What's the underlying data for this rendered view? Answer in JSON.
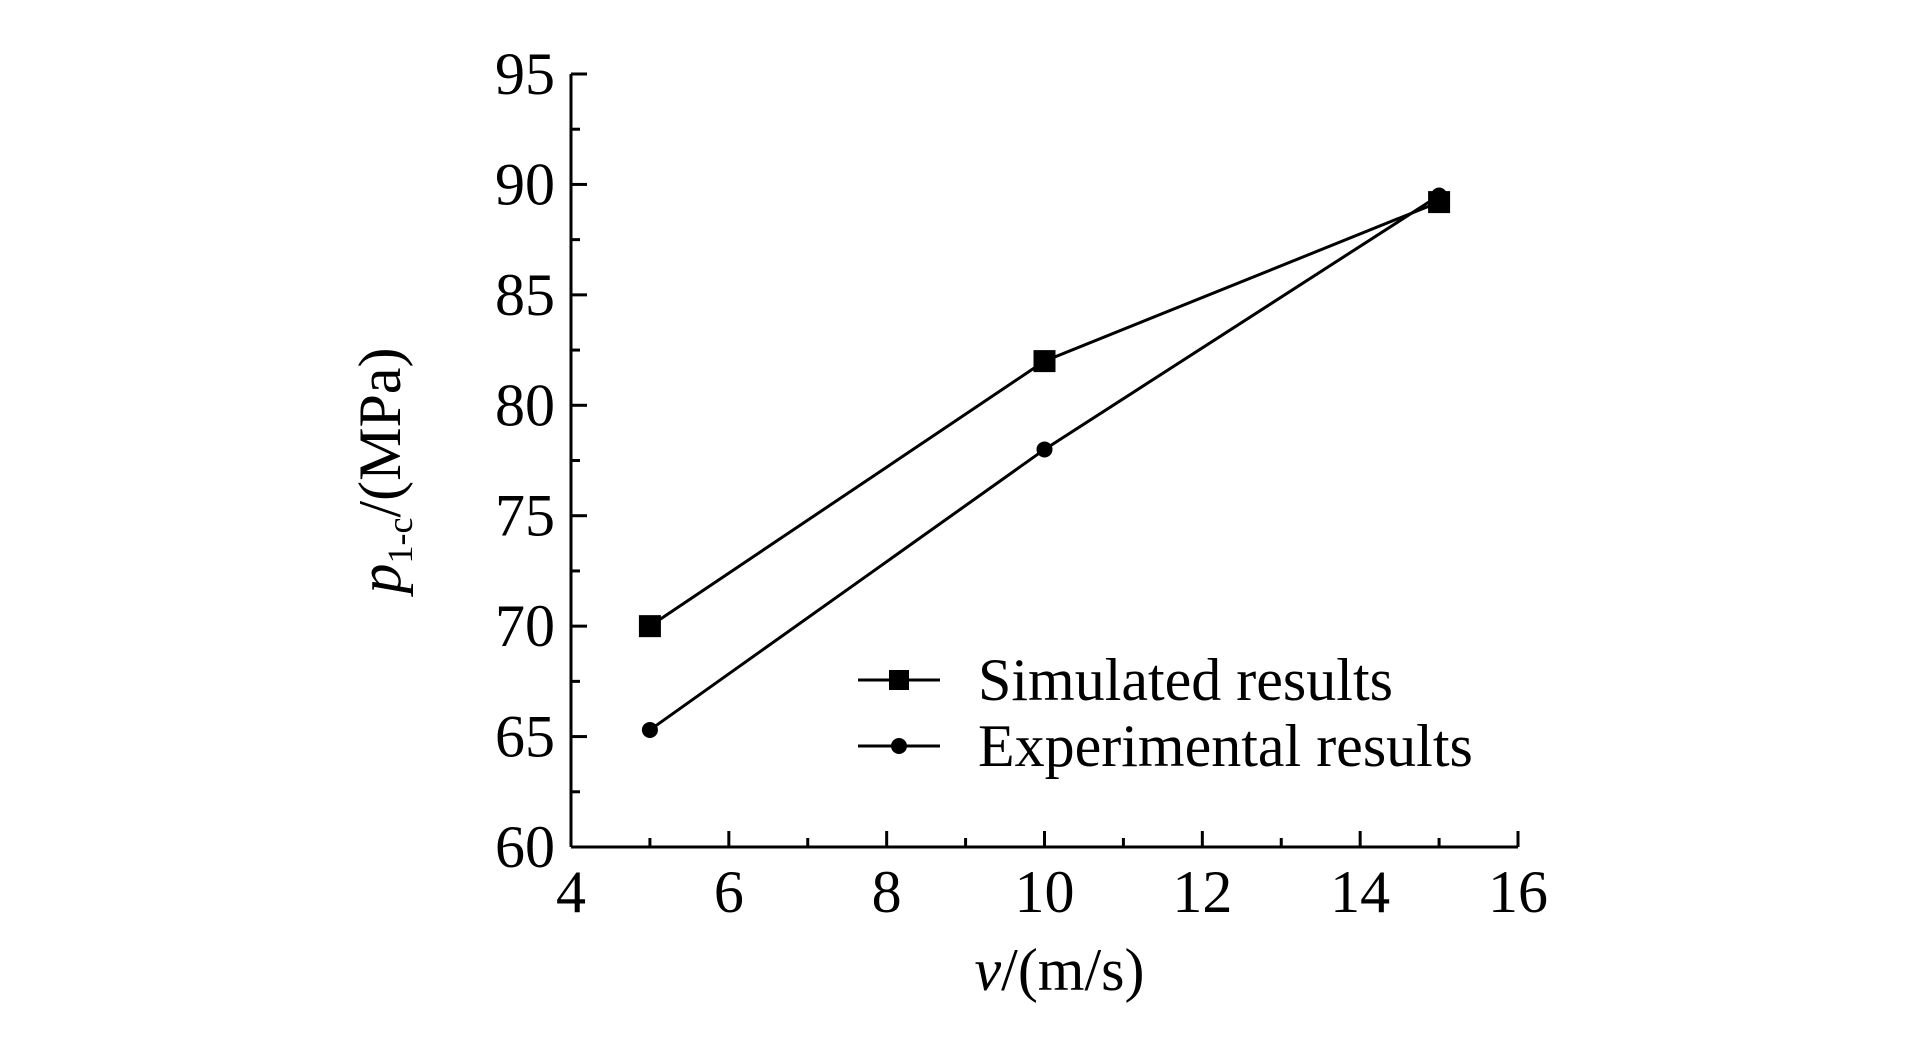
{
  "chart_data": {
    "type": "line",
    "xlabel_var": "v",
    "xlabel_unit": "/(m/s)",
    "ylabel_var": "p",
    "ylabel_sub": "1-c",
    "ylabel_unit": "/(MPa)",
    "xlim": [
      4,
      16
    ],
    "ylim": [
      60,
      95
    ],
    "xticks": [
      4,
      6,
      8,
      10,
      12,
      14,
      16
    ],
    "yticks": [
      60,
      65,
      70,
      75,
      80,
      85,
      90,
      95
    ],
    "x": [
      5,
      10,
      15
    ],
    "series": [
      {
        "name": "Simulated results",
        "marker": "square",
        "values": [
          70,
          82,
          89.2
        ]
      },
      {
        "name": "Experimental results",
        "marker": "circle",
        "values": [
          65.3,
          78,
          89.5
        ]
      }
    ],
    "legend_position": "lower-right",
    "grid": false
  }
}
